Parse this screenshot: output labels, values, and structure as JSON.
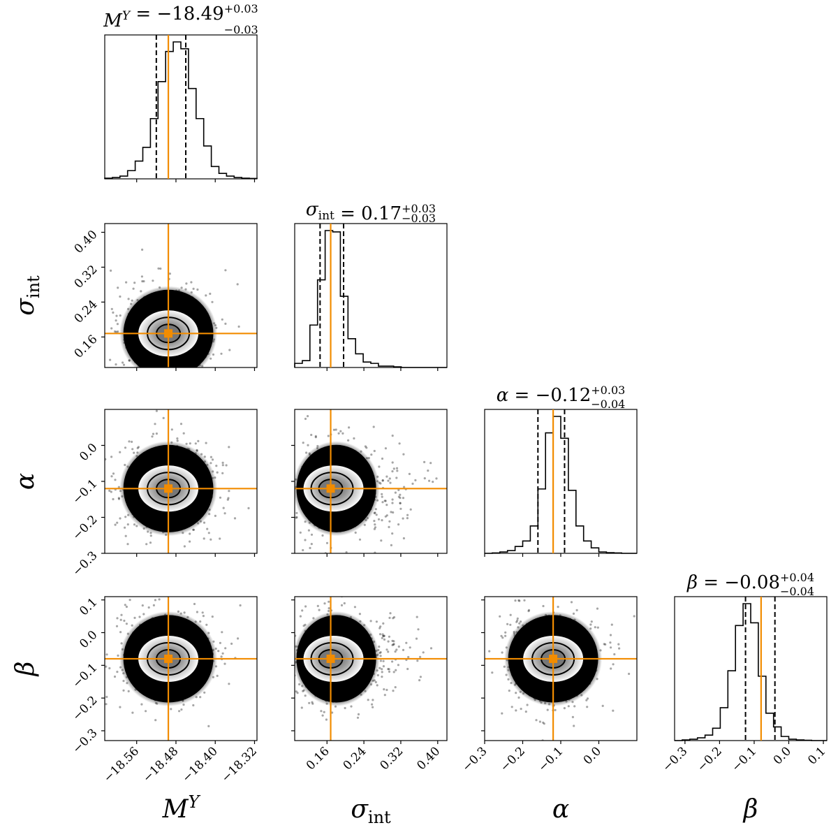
{
  "chart_data": {
    "type": "corner",
    "description_params": [
      "M^Y",
      "sigma_int",
      "alpha",
      "beta"
    ],
    "parameters": [
      {
        "key": "MY",
        "symbol": "M",
        "sup": "Y",
        "sub": "",
        "axis_label": "M^Y",
        "median": -18.49,
        "err_plus": "+0.03",
        "err_minus": "−0.03",
        "title_prefix": "= −18.49",
        "q16": -18.52,
        "q84": -18.46,
        "truth": -18.4955,
        "range": [
          -18.625,
          -18.315
        ],
        "ticks": [
          -18.56,
          -18.48,
          -18.4,
          -18.32
        ],
        "tick_labels": [
          "−18.56",
          "−18.48",
          "−18.40",
          "−18.32"
        ],
        "hist": [
          0.005,
          0.01,
          0.02,
          0.06,
          0.13,
          0.23,
          0.44,
          0.71,
          0.93,
          1.0,
          0.95,
          0.66,
          0.44,
          0.24,
          0.09,
          0.04,
          0.02,
          0.01,
          0.005,
          0.003
        ]
      },
      {
        "key": "sigma_int",
        "symbol": "σ",
        "sup": "",
        "sub": "int",
        "axis_label": "sigma_int",
        "median": 0.17,
        "err_plus": "+0.03",
        "err_minus": "−0.03",
        "title_prefix": "= 0.17",
        "q16": 0.145,
        "q84": 0.196,
        "truth": 0.168,
        "range": [
          0.09,
          0.42
        ],
        "ticks": [
          0.16,
          0.24,
          0.32,
          0.4
        ],
        "tick_labels": [
          "0.16",
          "0.24",
          "0.32",
          "0.40"
        ],
        "y_tick_labels": [
          "0.16",
          "0.24",
          "0.32",
          "0.40"
        ],
        "hist": [
          0.03,
          0.05,
          0.31,
          0.64,
          1.0,
          0.99,
          0.52,
          0.21,
          0.1,
          0.04,
          0.03,
          0.01,
          0.01,
          0.005,
          0.0,
          0.0,
          0.0,
          0.0,
          0.0,
          0.0
        ]
      },
      {
        "key": "alpha",
        "symbol": "α",
        "sup": "",
        "sub": "",
        "axis_label": "alpha",
        "median": -0.12,
        "err_plus": "+0.03",
        "err_minus": "−0.04",
        "title_prefix": "= −0.12",
        "q16": -0.16,
        "q84": -0.09,
        "truth": -0.12,
        "range": [
          -0.3,
          0.1
        ],
        "ticks": [
          -0.3,
          -0.2,
          -0.1,
          0.0
        ],
        "tick_labels": [
          "−0.3",
          "−0.2",
          "−0.1",
          "0.0"
        ],
        "y_tick_labels": [
          "−0.3",
          "−0.2",
          "−0.1",
          "0.0"
        ],
        "hist": [
          0.0,
          0.003,
          0.01,
          0.02,
          0.05,
          0.09,
          0.2,
          0.47,
          0.88,
          1.0,
          0.84,
          0.46,
          0.2,
          0.09,
          0.04,
          0.01,
          0.005,
          0.003,
          0.0,
          0.0
        ]
      },
      {
        "key": "beta",
        "symbol": "β",
        "sup": "",
        "sub": "",
        "axis_label": "beta",
        "median": -0.08,
        "err_plus": "+0.04",
        "err_minus": "−0.04",
        "title_prefix": "= −0.08",
        "q16": -0.125,
        "q84": -0.04,
        "truth": -0.08,
        "range": [
          -0.33,
          0.11
        ],
        "ticks": [
          -0.3,
          -0.2,
          -0.1,
          0.0,
          0.1
        ],
        "tick_labels": [
          "−0.3",
          "−0.2",
          "−0.1",
          "0.0",
          "0.1"
        ],
        "y_tick_labels": [
          "−0.3",
          "−0.2",
          "−0.1",
          "0.0",
          "0.1"
        ],
        "hist": [
          0.0,
          0.005,
          0.01,
          0.02,
          0.04,
          0.09,
          0.24,
          0.51,
          0.84,
          1.0,
          0.86,
          0.47,
          0.2,
          0.1,
          0.03,
          0.01,
          0.005,
          0.002,
          0.0,
          0.0
        ]
      }
    ],
    "colors": {
      "truth": "#f28c00",
      "hist": "#000000",
      "quantile": "#000000"
    },
    "quantile_style": "dashed",
    "contour_levels": 3
  }
}
